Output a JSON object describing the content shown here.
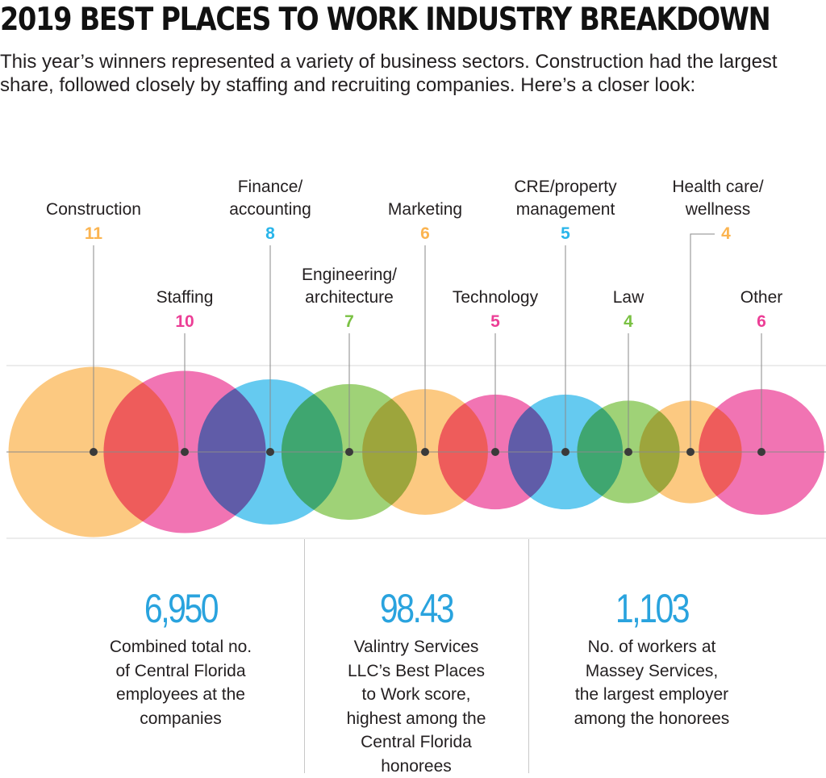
{
  "title": "2019 BEST PLACES TO WORK INDUSTRY BREAKDOWN",
  "intro": "This year’s winners represented a variety of business sectors. Construction had the largest share, followed closely by staffing and recruiting companies. Here’s a closer look:",
  "colors": {
    "orange": "#fbb450",
    "pink": "#ec3e96",
    "blue": "#29b5ea",
    "green": "#7ac143",
    "text": "#231f20",
    "stat_blue": "#29a3de"
  },
  "chart_data": {
    "type": "bubble",
    "categories": [
      "Construction",
      "Staffing",
      "Finance/ accounting",
      "Engineering/ architecture",
      "Marketing",
      "Technology",
      "CRE/property management",
      "Law",
      "Health care/ wellness",
      "Other"
    ],
    "values": [
      11,
      10,
      8,
      7,
      6,
      5,
      5,
      4,
      4,
      6
    ],
    "labels": [
      [
        "Construction"
      ],
      [
        "Staffing"
      ],
      [
        "Finance/",
        "accounting"
      ],
      [
        "Engineering/",
        "architecture"
      ],
      [
        "Marketing"
      ],
      [
        "Technology"
      ],
      [
        "CRE/property",
        "management"
      ],
      [
        "Law"
      ],
      [
        "Health care/",
        "wellness"
      ],
      [
        "Other"
      ]
    ],
    "series_colors": [
      "#fbb450",
      "#ec3e96",
      "#29b5ea",
      "#7ac143",
      "#fbb450",
      "#ec3e96",
      "#29b5ea",
      "#7ac143",
      "#fbb450",
      "#ec3e96"
    ],
    "legend": "none",
    "grid": false
  },
  "stats": [
    {
      "value": "6,950",
      "caption": [
        "Combined total no.",
        "of Central Florida",
        "employees at the",
        "companies"
      ]
    },
    {
      "value": "98.43",
      "caption": [
        "Valintry Services",
        "LLC’s Best Places",
        "to Work score,",
        "highest among the",
        "Central Florida",
        "honorees"
      ]
    },
    {
      "value": "1,103",
      "caption": [
        "No. of workers at",
        "Massey Services,",
        "the largest employer",
        "among the honorees"
      ]
    }
  ]
}
